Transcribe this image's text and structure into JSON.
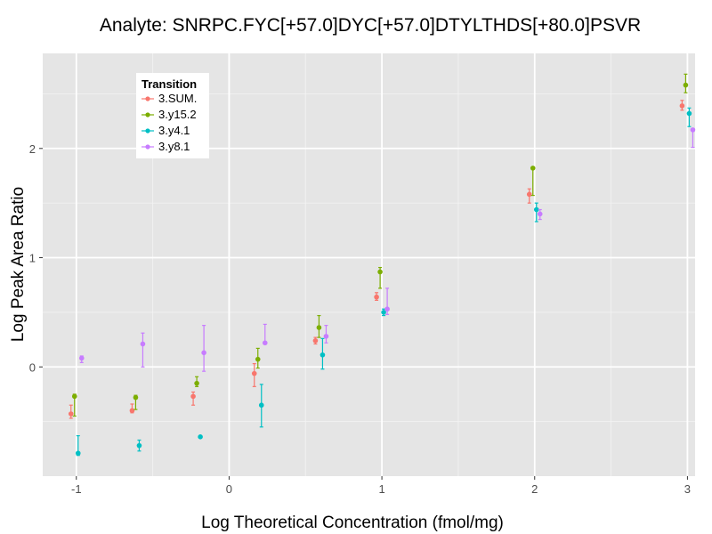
{
  "chart_data": {
    "type": "scatter",
    "title": "Analyte: SNRPC.FYC[+57.0]DYC[+57.0]DTYLTHDS[+80.0]PSVR",
    "xlabel": "Log Theoretical Concentration (fmol/mg)",
    "ylabel": "Log Peak Area Ratio",
    "xlim": [
      -1.22,
      3.05
    ],
    "ylim": [
      -1.0,
      2.87
    ],
    "x_ticks": [
      -1,
      0,
      1,
      2,
      3
    ],
    "x_tick_labels": [
      "-1",
      "0",
      "1",
      "2",
      "3"
    ],
    "y_ticks": [
      0,
      1,
      2
    ],
    "y_tick_labels": [
      "0",
      "1",
      "2"
    ],
    "grid": true,
    "error_bars": true,
    "legend": {
      "title": "Transition",
      "position": "top-left"
    },
    "series": [
      {
        "name": "3.SUM.",
        "color": "#F8766D",
        "x": [
          -1,
          -0.6,
          -0.2,
          0.2,
          0.6,
          1,
          2,
          3
        ],
        "y": [
          -0.43,
          -0.4,
          -0.27,
          -0.06,
          0.24,
          0.64,
          1.58,
          2.39
        ],
        "err_low": [
          -0.47,
          -0.42,
          -0.35,
          -0.18,
          0.21,
          0.61,
          1.5,
          2.35
        ],
        "err_high": [
          -0.35,
          -0.34,
          -0.23,
          0.03,
          0.27,
          0.68,
          1.63,
          2.44
        ]
      },
      {
        "name": "3.y15.2",
        "color": "#7CAE00",
        "x": [
          -1,
          -0.6,
          -0.2,
          0.2,
          0.6,
          1,
          2,
          3
        ],
        "y": [
          -0.27,
          -0.28,
          -0.15,
          0.07,
          0.36,
          0.87,
          1.82,
          2.58
        ],
        "err_low": [
          -0.45,
          -0.39,
          -0.18,
          -0.01,
          0.27,
          0.72,
          1.57,
          2.51
        ],
        "err_high": [
          -0.25,
          -0.26,
          -0.09,
          0.17,
          0.47,
          0.91,
          1.82,
          2.68
        ]
      },
      {
        "name": "3.y4.1",
        "color": "#00BFC4",
        "x": [
          -1,
          -0.6,
          -0.2,
          0.2,
          0.6,
          1,
          2,
          3
        ],
        "y": [
          -0.79,
          -0.72,
          -0.64,
          -0.35,
          0.11,
          0.5,
          1.44,
          2.32
        ],
        "err_low": [
          -0.81,
          -0.77,
          -0.64,
          -0.55,
          -0.02,
          0.47,
          1.33,
          2.2
        ],
        "err_high": [
          -0.63,
          -0.67,
          -0.64,
          -0.16,
          0.26,
          0.53,
          1.5,
          2.37
        ]
      },
      {
        "name": "3.y8.1",
        "color": "#C77CFF",
        "x": [
          -1,
          -0.6,
          -0.2,
          0.2,
          0.6,
          1,
          2,
          3
        ],
        "y": [
          0.08,
          0.21,
          0.13,
          0.22,
          0.28,
          0.53,
          1.4,
          2.17
        ],
        "err_low": [
          0.04,
          0.0,
          -0.04,
          0.22,
          0.22,
          0.48,
          1.35,
          2.01
        ],
        "err_high": [
          0.1,
          0.31,
          0.38,
          0.39,
          0.38,
          0.72,
          1.44,
          2.17
        ]
      }
    ]
  }
}
